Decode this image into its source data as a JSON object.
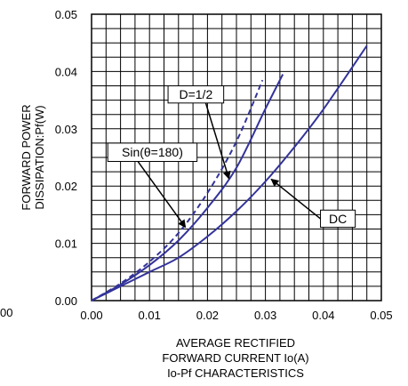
{
  "chart_data": {
    "type": "line",
    "xlabel": [
      "AVERAGE RECTIFIED",
      "FORWARD CURRENT Io(A)"
    ],
    "subtitle": "Io-Pf CHARACTERISTICS",
    "ylabel": [
      "FORWARD POWER",
      "DISSIPATION:Pf(W)"
    ],
    "xlim": [
      0,
      0.05
    ],
    "ylim": [
      0,
      0.05
    ],
    "x_ticks": [
      "0.00",
      "0.01",
      "0.02",
      "0.03",
      "0.04",
      "0.05"
    ],
    "y_ticks": [
      "0.00",
      "0.01",
      "0.02",
      "0.03",
      "0.04",
      "0.05"
    ],
    "stray_label": "00",
    "grid": true,
    "grid_step": 0.0025,
    "line_color": "#33339a",
    "series": [
      {
        "key": "dc",
        "style": "solid",
        "points": [
          [
            0,
            0
          ],
          [
            0.005,
            0.0025
          ],
          [
            0.01,
            0.005
          ],
          [
            0.015,
            0.0075
          ],
          [
            0.02,
            0.0112
          ],
          [
            0.025,
            0.0156
          ],
          [
            0.03,
            0.0208
          ],
          [
            0.035,
            0.0268
          ],
          [
            0.04,
            0.0334
          ],
          [
            0.0475,
            0.0445
          ]
        ]
      },
      {
        "key": "d_half",
        "style": "solid",
        "points": [
          [
            0,
            0
          ],
          [
            0.005,
            0.0028
          ],
          [
            0.01,
            0.0062
          ],
          [
            0.015,
            0.0105
          ],
          [
            0.02,
            0.0162
          ],
          [
            0.025,
            0.0232
          ],
          [
            0.03,
            0.0335
          ],
          [
            0.033,
            0.0395
          ]
        ]
      },
      {
        "key": "sin180",
        "style": "dashed",
        "points": [
          [
            0,
            0
          ],
          [
            0.005,
            0.003
          ],
          [
            0.01,
            0.0068
          ],
          [
            0.015,
            0.0118
          ],
          [
            0.02,
            0.0188
          ],
          [
            0.025,
            0.0278
          ],
          [
            0.0295,
            0.0385
          ]
        ]
      }
    ],
    "annotations": [
      {
        "text": "DC",
        "box": [
          0.0395,
          0.0158,
          0.0455,
          0.0128
        ],
        "arrow_from": [
          0.0395,
          0.0143
        ],
        "arrow_to": [
          0.031,
          0.0212
        ]
      },
      {
        "text": "D=1/2",
        "box": [
          0.0132,
          0.0375,
          0.0228,
          0.0345
        ],
        "arrow_from": [
          0.0197,
          0.0345
        ],
        "arrow_to": [
          0.0237,
          0.0213
        ]
      },
      {
        "text": "Sin(θ=180)",
        "box": [
          0.0028,
          0.0275,
          0.0182,
          0.0243
        ],
        "arrow_from": [
          0.008,
          0.0243
        ],
        "arrow_to": [
          0.0162,
          0.0128
        ]
      }
    ]
  }
}
